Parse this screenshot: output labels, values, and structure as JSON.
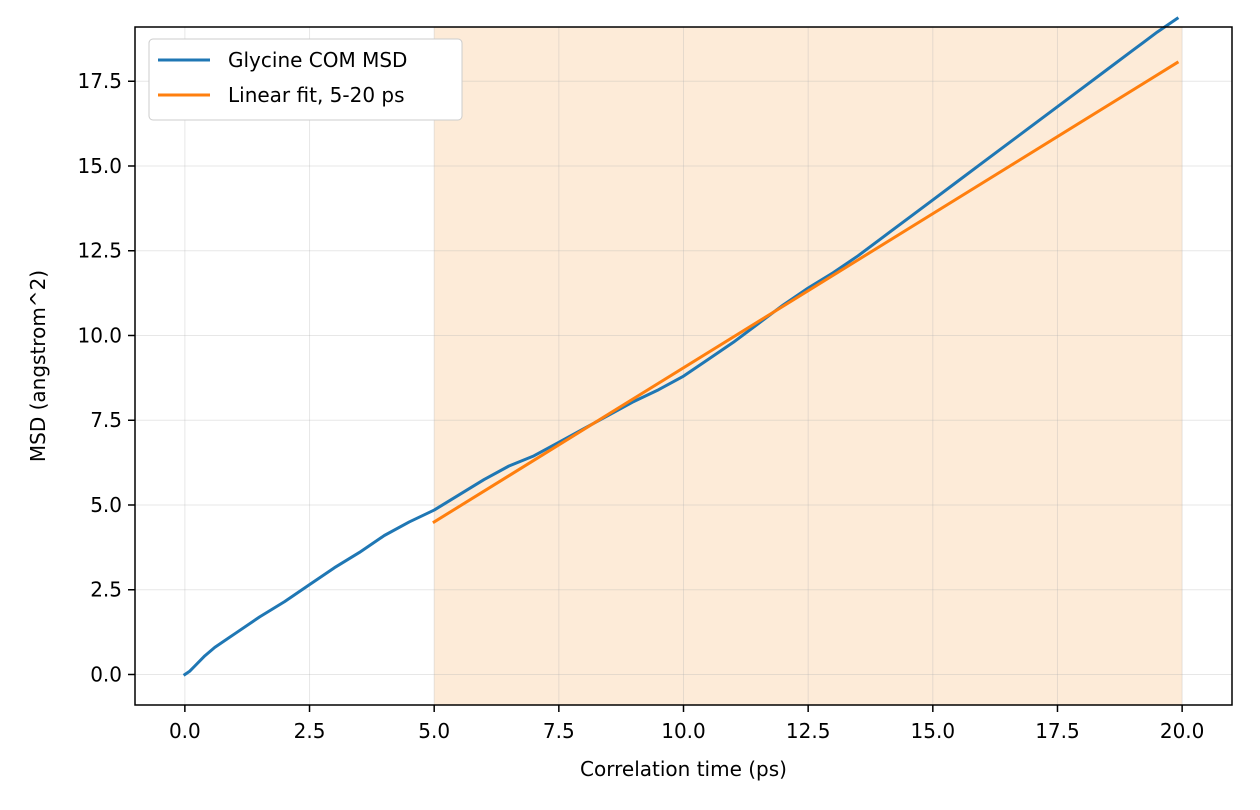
{
  "chart_data": {
    "type": "line",
    "title": "",
    "xlabel": "Correlation time (ps)",
    "ylabel": "MSD (angstrom^2)",
    "xlim": [
      -1.0,
      21.0
    ],
    "ylim": [
      -0.9,
      19.1
    ],
    "xticks": [
      0.0,
      2.5,
      5.0,
      7.5,
      10.0,
      12.5,
      15.0,
      17.5,
      20.0
    ],
    "xtick_labels": [
      "0.0",
      "2.5",
      "5.0",
      "7.5",
      "10.0",
      "12.5",
      "15.0",
      "17.5",
      "20.0"
    ],
    "yticks": [
      0.0,
      2.5,
      5.0,
      7.5,
      10.0,
      12.5,
      15.0,
      17.5
    ],
    "ytick_labels": [
      "0.0",
      "2.5",
      "5.0",
      "7.5",
      "10.0",
      "12.5",
      "15.0",
      "17.5"
    ],
    "grid": true,
    "legend_position": "top-left",
    "shaded_region": {
      "x_start": 5.0,
      "x_end": 20.0,
      "color": "#fdebd8"
    },
    "series": [
      {
        "name": "Glycine COM MSD",
        "color": "#1f77b4",
        "x": [
          0.0,
          0.1,
          0.2,
          0.4,
          0.6,
          1.0,
          1.5,
          2.0,
          2.5,
          3.0,
          3.5,
          4.0,
          4.5,
          5.0,
          5.5,
          6.0,
          6.5,
          7.0,
          7.5,
          8.0,
          8.5,
          9.0,
          9.5,
          10.0,
          10.5,
          11.0,
          11.5,
          12.0,
          12.5,
          13.0,
          13.5,
          14.0,
          14.5,
          15.0,
          15.5,
          16.0,
          16.5,
          17.0,
          17.5,
          18.0,
          18.5,
          19.0,
          19.5,
          19.9
        ],
        "y": [
          0.0,
          0.1,
          0.25,
          0.55,
          0.8,
          1.2,
          1.7,
          2.15,
          2.65,
          3.15,
          3.6,
          4.1,
          4.5,
          4.85,
          5.3,
          5.75,
          6.15,
          6.45,
          6.85,
          7.25,
          7.65,
          8.05,
          8.4,
          8.8,
          9.3,
          9.8,
          10.35,
          10.9,
          11.4,
          11.85,
          12.35,
          12.9,
          13.45,
          14.0,
          14.55,
          15.1,
          15.65,
          16.2,
          16.75,
          17.3,
          17.85,
          18.4,
          18.95,
          19.35
        ]
      },
      {
        "name": "Linear fit, 5-20 ps",
        "color": "#ff7f0e",
        "x": [
          5.0,
          19.9
        ],
        "y": [
          4.5,
          18.05
        ]
      }
    ]
  }
}
